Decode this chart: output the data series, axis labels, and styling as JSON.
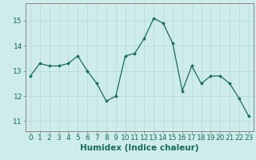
{
  "x": [
    0,
    1,
    2,
    3,
    4,
    5,
    6,
    7,
    8,
    9,
    10,
    11,
    12,
    13,
    14,
    15,
    16,
    17,
    18,
    19,
    20,
    21,
    22,
    23
  ],
  "y": [
    12.8,
    13.3,
    13.2,
    13.2,
    13.3,
    13.6,
    13.0,
    12.5,
    11.8,
    12.0,
    13.6,
    13.7,
    14.3,
    15.1,
    14.9,
    14.1,
    12.2,
    13.2,
    12.5,
    12.8,
    12.8,
    12.5,
    11.9,
    11.2
  ],
  "line_color": "#1a6b5a",
  "marker": "D",
  "marker_size": 2.0,
  "bg_color": "#ceecea",
  "grid_color": "#b8ddd9",
  "axis_color": "#888888",
  "xlabel": "Humidex (Indice chaleur)",
  "xlabel_fontsize": 7.5,
  "ylabel_ticks": [
    11,
    12,
    13,
    14,
    15
  ],
  "ylim": [
    10.6,
    15.7
  ],
  "xlim": [
    -0.5,
    23.5
  ],
  "tick_fontsize": 6.5,
  "tick_color": "#1a6b5a",
  "linewidth": 0.9
}
